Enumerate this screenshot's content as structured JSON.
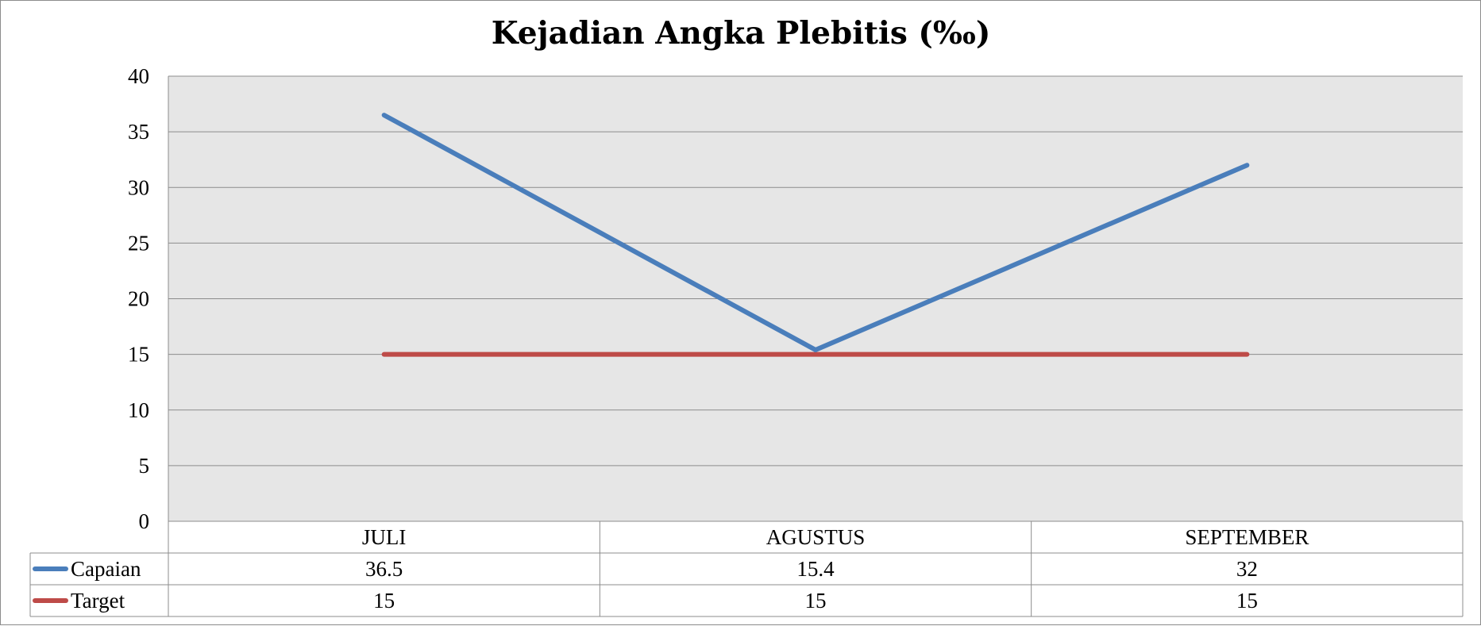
{
  "chart_data": {
    "type": "line",
    "title": "Kejadian Angka Plebitis (‰)",
    "xlabel": "",
    "ylabel": "",
    "categories": [
      "JULI",
      "AGUSTUS",
      "SEPTEMBER"
    ],
    "ylim": [
      0,
      40
    ],
    "yticks": [
      0,
      5,
      10,
      15,
      20,
      25,
      30,
      35,
      40
    ],
    "ytick_labels": [
      "0",
      "5",
      "10",
      "15",
      "20",
      "25",
      "30",
      "35",
      "40"
    ],
    "grid": true,
    "legend": "data-table-left",
    "series": [
      {
        "name": "Capaian",
        "values": [
          36.5,
          15.4,
          32
        ],
        "value_labels": [
          "36.5",
          "15.4",
          "32"
        ],
        "color": "#4a7ebb"
      },
      {
        "name": "Target",
        "values": [
          15,
          15,
          15
        ],
        "value_labels": [
          "15",
          "15",
          "15"
        ],
        "color": "#be4b48"
      }
    ],
    "plot_background": "#e6e6e6",
    "gridline_color": "#8c8c8c"
  }
}
